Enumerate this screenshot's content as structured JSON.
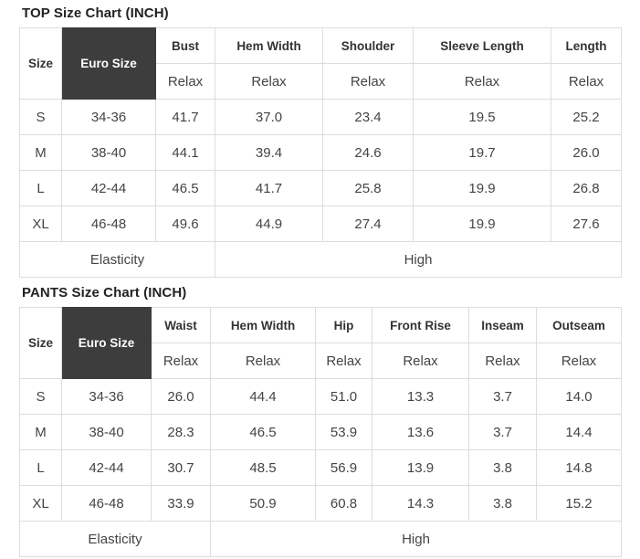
{
  "colors": {
    "euro_cell_bg": "#3d3d3d",
    "euro_cell_text": "#ffffff",
    "table_border": "#dddddd",
    "text": "#444444"
  },
  "tables": [
    {
      "title": "TOP Size Chart (INCH)",
      "size_label": "Size",
      "euro_label": "Euro Size",
      "columns": [
        {
          "label": "Bust",
          "fit": "Relax"
        },
        {
          "label": "Hem Width",
          "fit": "Relax"
        },
        {
          "label": "Shoulder",
          "fit": "Relax"
        },
        {
          "label": "Sleeve Length",
          "fit": "Relax"
        },
        {
          "label": "Length",
          "fit": "Relax"
        }
      ],
      "rows": [
        {
          "size": "S",
          "euro": "34-36",
          "values": [
            "41.7",
            "37.0",
            "23.4",
            "19.5",
            "25.2"
          ]
        },
        {
          "size": "M",
          "euro": "38-40",
          "values": [
            "44.1",
            "39.4",
            "24.6",
            "19.7",
            "26.0"
          ]
        },
        {
          "size": "L",
          "euro": "42-44",
          "values": [
            "46.5",
            "41.7",
            "25.8",
            "19.9",
            "26.8"
          ]
        },
        {
          "size": "XL",
          "euro": "46-48",
          "values": [
            "49.6",
            "44.9",
            "27.4",
            "19.9",
            "27.6"
          ]
        }
      ],
      "footer": {
        "label": "Elasticity",
        "value": "High"
      }
    },
    {
      "title": "PANTS Size Chart (INCH)",
      "size_label": "Size",
      "euro_label": "Euro Size",
      "columns": [
        {
          "label": "Waist",
          "fit": "Relax"
        },
        {
          "label": "Hem Width",
          "fit": "Relax"
        },
        {
          "label": "Hip",
          "fit": "Relax"
        },
        {
          "label": "Front Rise",
          "fit": "Relax"
        },
        {
          "label": "Inseam",
          "fit": "Relax"
        },
        {
          "label": "Outseam",
          "fit": "Relax"
        }
      ],
      "rows": [
        {
          "size": "S",
          "euro": "34-36",
          "values": [
            "26.0",
            "44.4",
            "51.0",
            "13.3",
            "3.7",
            "14.0"
          ]
        },
        {
          "size": "M",
          "euro": "38-40",
          "values": [
            "28.3",
            "46.5",
            "53.9",
            "13.6",
            "3.7",
            "14.4"
          ]
        },
        {
          "size": "L",
          "euro": "42-44",
          "values": [
            "30.7",
            "48.5",
            "56.9",
            "13.9",
            "3.8",
            "14.8"
          ]
        },
        {
          "size": "XL",
          "euro": "46-48",
          "values": [
            "33.9",
            "50.9",
            "60.8",
            "14.3",
            "3.8",
            "15.2"
          ]
        }
      ],
      "footer": {
        "label": "Elasticity",
        "value": "High"
      }
    }
  ]
}
